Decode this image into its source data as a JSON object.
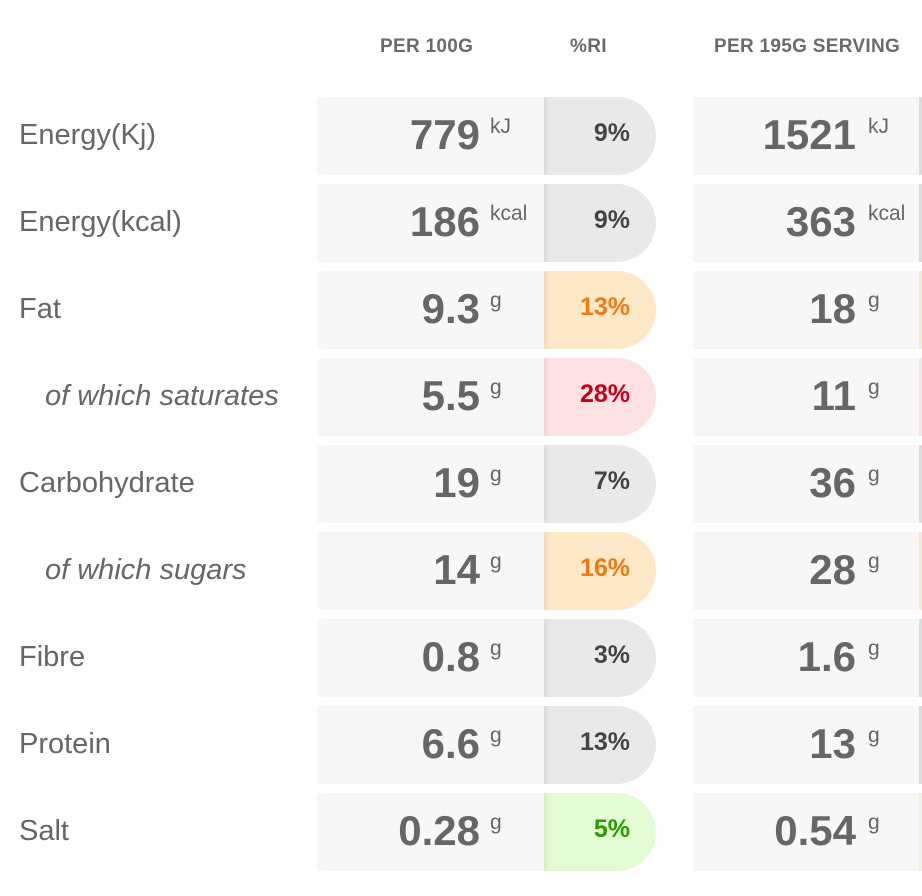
{
  "headers": {
    "per100": "PER 100G",
    "ri": "%RI",
    "serving": "PER 195G SERVING"
  },
  "colors": {
    "low": "#e9e9e9",
    "medium": "#fde9c8",
    "high": "#fde1e3",
    "green": "#e3fbd3",
    "text_medium": "#f07a12",
    "text_high": "#c4001a",
    "text_green": "#2a9a00",
    "text_low": "#444444"
  },
  "rows": [
    {
      "label": "Energy(Kj)",
      "per100": "779",
      "unit": "kJ",
      "ri": "9%",
      "level": "low",
      "serving": "1521",
      "serving_unit": "kJ"
    },
    {
      "label": "Energy(kcal)",
      "per100": "186",
      "unit": "kcal",
      "ri": "9%",
      "level": "low",
      "serving": "363",
      "serving_unit": "kcal"
    },
    {
      "label": "Fat",
      "per100": "9.3",
      "unit": "g",
      "ri": "13%",
      "level": "medium",
      "serving": "18",
      "serving_unit": "g"
    },
    {
      "label": "of which saturates",
      "per100": "5.5",
      "unit": "g",
      "ri": "28%",
      "level": "high",
      "serving": "11",
      "serving_unit": "g"
    },
    {
      "label": "Carbohydrate",
      "per100": "19",
      "unit": "g",
      "ri": "7%",
      "level": "low",
      "serving": "36",
      "serving_unit": "g"
    },
    {
      "label": "of which sugars",
      "per100": "14",
      "unit": "g",
      "ri": "16%",
      "level": "medium",
      "serving": "28",
      "serving_unit": "g"
    },
    {
      "label": "Fibre",
      "per100": "0.8",
      "unit": "g",
      "ri": "3%",
      "level": "low",
      "serving": "1.6",
      "serving_unit": "g"
    },
    {
      "label": "Protein",
      "per100": "6.6",
      "unit": "g",
      "ri": "13%",
      "level": "low",
      "serving": "13",
      "serving_unit": "g"
    },
    {
      "label": "Salt",
      "per100": "0.28",
      "unit": "g",
      "ri": "5%",
      "level": "green",
      "serving": "0.54",
      "serving_unit": "g"
    }
  ]
}
